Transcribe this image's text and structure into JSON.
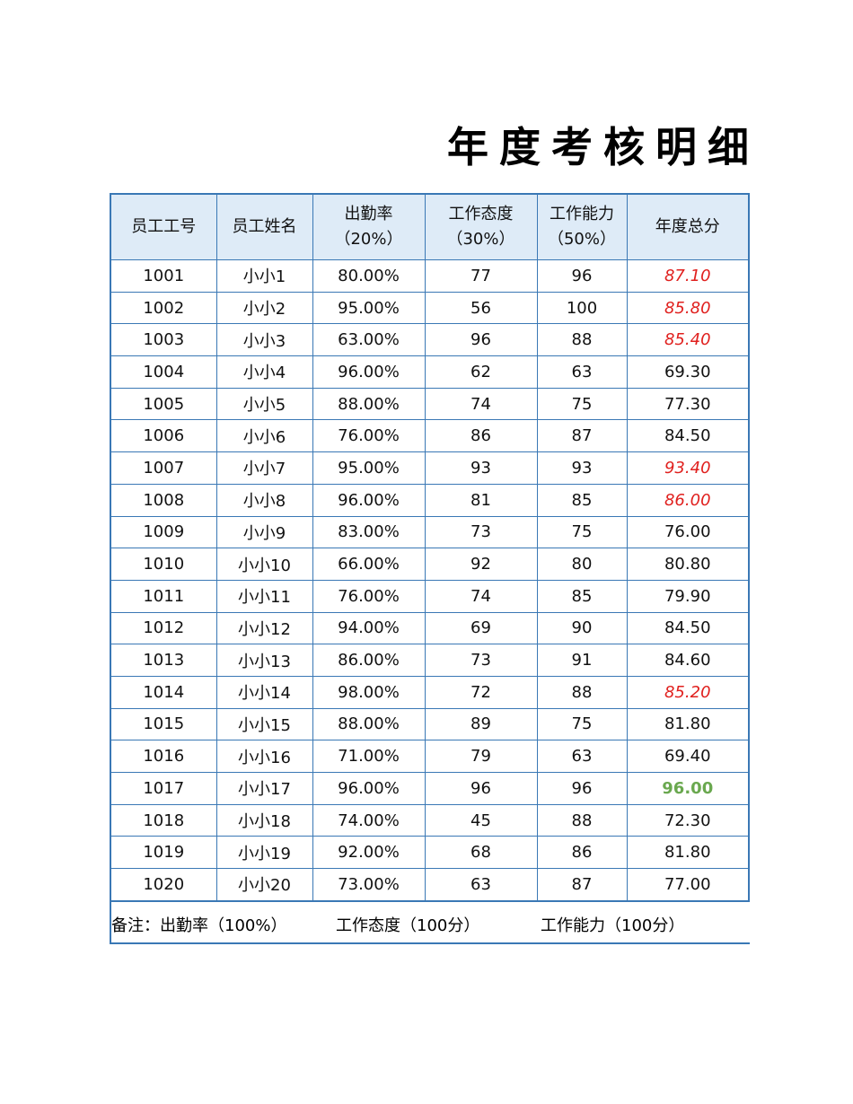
{
  "title": "年度考核明细",
  "table": {
    "header": [
      "员工工号",
      "员工姓名",
      "出勤率\n（20%）",
      "工作态度\n（30%）",
      "工作能力\n（50%）",
      "年度总分"
    ],
    "rows": [
      [
        "1001",
        "小小1",
        "80.00%",
        "77",
        "96",
        "87.10"
      ],
      [
        "1002",
        "小小2",
        "95.00%",
        "56",
        "100",
        "85.80"
      ],
      [
        "1003",
        "小小3",
        "63.00%",
        "96",
        "88",
        "85.40"
      ],
      [
        "1004",
        "小小4",
        "96.00%",
        "62",
        "63",
        "69.30"
      ],
      [
        "1005",
        "小小5",
        "88.00%",
        "74",
        "75",
        "77.30"
      ],
      [
        "1006",
        "小小6",
        "76.00%",
        "86",
        "87",
        "84.50"
      ],
      [
        "1007",
        "小小7",
        "95.00%",
        "93",
        "93",
        "93.40"
      ],
      [
        "1008",
        "小小8",
        "96.00%",
        "81",
        "85",
        "86.00"
      ],
      [
        "1009",
        "小小9",
        "83.00%",
        "73",
        "75",
        "76.00"
      ],
      [
        "1010",
        "小小10",
        "66.00%",
        "92",
        "80",
        "80.80"
      ],
      [
        "1011",
        "小小11",
        "76.00%",
        "74",
        "85",
        "79.90"
      ],
      [
        "1012",
        "小小12",
        "94.00%",
        "69",
        "90",
        "84.50"
      ],
      [
        "1013",
        "小小13",
        "86.00%",
        "73",
        "91",
        "84.60"
      ],
      [
        "1014",
        "小小14",
        "98.00%",
        "72",
        "88",
        "85.20"
      ],
      [
        "1015",
        "小小15",
        "88.00%",
        "89",
        "75",
        "81.80"
      ],
      [
        "1016",
        "小小16",
        "71.00%",
        "79",
        "63",
        "69.40"
      ],
      [
        "1017",
        "小小17",
        "96.00%",
        "96",
        "96",
        "96.00"
      ],
      [
        "1018",
        "小小18",
        "74.00%",
        "45",
        "88",
        "72.30"
      ],
      [
        "1019",
        "小小19",
        "92.00%",
        "68",
        "86",
        "81.80"
      ],
      [
        "1020",
        "小小20",
        "73.00%",
        "63",
        "87",
        "77.00"
      ]
    ]
  },
  "note": [
    "备注：出勤率（100%）",
    "工作态度（100分）",
    "工作能力（100分）"
  ]
}
